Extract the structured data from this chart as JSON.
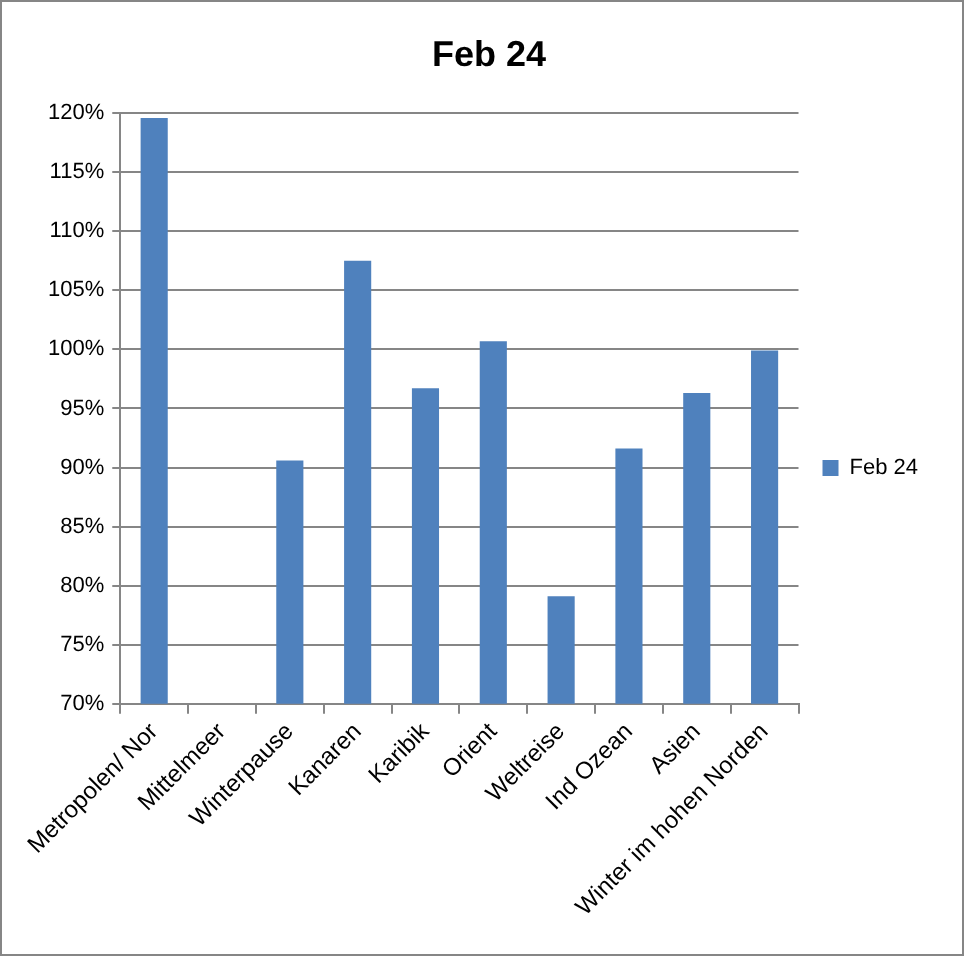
{
  "chart_data": {
    "type": "bar",
    "title": "Feb 24",
    "categories": [
      "Metropolen/ Nor",
      "Mittelmeer",
      "Winterpause",
      "Kanaren",
      "Karibik",
      "Orient",
      "Weltreise",
      "Ind Ozean",
      "Asien",
      "Winter im hohen Norden"
    ],
    "series": [
      {
        "name": "Feb 24",
        "color": "#4f81bd",
        "values": [
          119.6,
          null,
          90.6,
          107.5,
          96.7,
          100.7,
          79.1,
          91.6,
          96.3,
          99.9
        ]
      }
    ],
    "ylim": [
      70,
      120
    ],
    "yticks": [
      {
        "value": 70,
        "label": "70%"
      },
      {
        "value": 75,
        "label": "75%"
      },
      {
        "value": 80,
        "label": "80%"
      },
      {
        "value": 85,
        "label": "85%"
      },
      {
        "value": 90,
        "label": "90%"
      },
      {
        "value": 95,
        "label": "95%"
      },
      {
        "value": 100,
        "label": "100%"
      },
      {
        "value": 105,
        "label": "105%"
      },
      {
        "value": 110,
        "label": "110%"
      },
      {
        "value": 115,
        "label": "115%"
      },
      {
        "value": 120,
        "label": "120%"
      }
    ],
    "grid": "y",
    "legend": "right"
  }
}
